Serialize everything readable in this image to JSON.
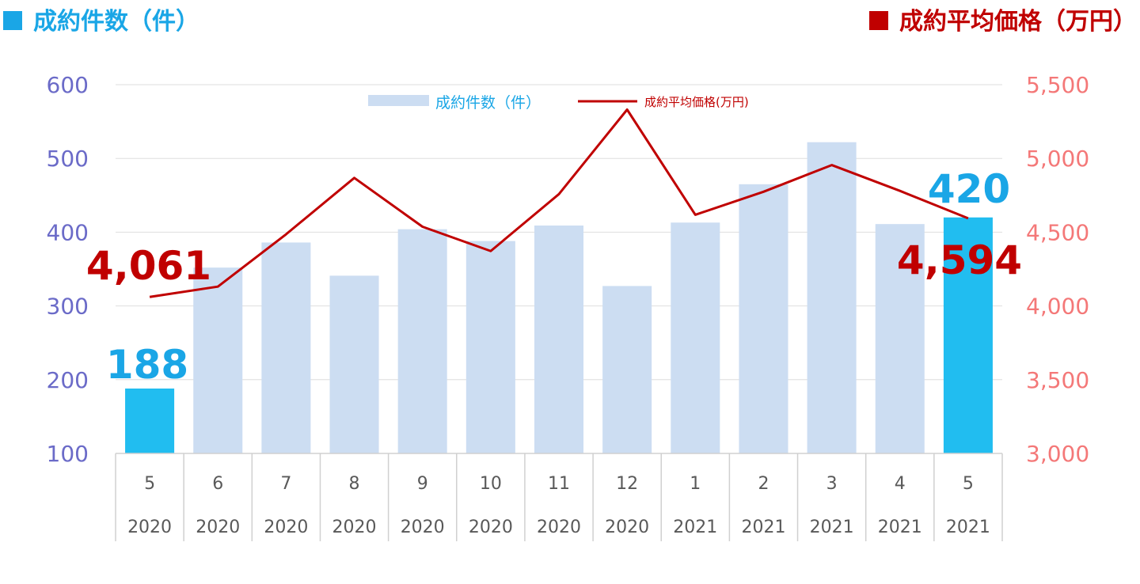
{
  "header": {
    "left_label": "成約件数（件）",
    "right_label": "成約平均価格（万円）",
    "left_color": "#1aa6e6",
    "right_color": "#c00000"
  },
  "chart_data": {
    "type": "bar",
    "categories": [
      [
        "5",
        "2020"
      ],
      [
        "6",
        "2020"
      ],
      [
        "7",
        "2020"
      ],
      [
        "8",
        "2020"
      ],
      [
        "9",
        "2020"
      ],
      [
        "10",
        "2020"
      ],
      [
        "11",
        "2020"
      ],
      [
        "12",
        "2020"
      ],
      [
        "1",
        "2021"
      ],
      [
        "2",
        "2021"
      ],
      [
        "3",
        "2021"
      ],
      [
        "4",
        "2021"
      ],
      [
        "5",
        "2021"
      ]
    ],
    "series": [
      {
        "name": "成約件数（件）",
        "type": "bar",
        "axis": "left",
        "values": [
          188,
          352,
          386,
          341,
          404,
          388,
          409,
          327,
          413,
          465,
          522,
          411,
          420
        ],
        "color": "#ccddf2",
        "highlight_color": "#21bdf0",
        "highlight_indices": [
          0,
          12
        ]
      },
      {
        "name": "成約平均価格(万円)",
        "type": "line",
        "axis": "right",
        "values": [
          4061,
          4131,
          4486,
          4868,
          4537,
          4372,
          4758,
          5331,
          4618,
          4774,
          4955,
          4780,
          4594
        ],
        "color": "#c00000"
      }
    ],
    "y_left": {
      "range": [
        100,
        600
      ],
      "ticks": [
        "100",
        "200",
        "300",
        "400",
        "500",
        "600"
      ],
      "color": "#6b6bc8"
    },
    "y_right": {
      "range": [
        3000,
        5500
      ],
      "ticks": [
        "3,000",
        "3,500",
        "4,000",
        "4,500",
        "5,000",
        "5,500"
      ],
      "color": "#f47878"
    },
    "grid": true,
    "legend": {
      "position": "top-center"
    },
    "annotations": [
      {
        "text": "188",
        "series": 0,
        "index": 0,
        "color": "#1aa6e6"
      },
      {
        "text": "420",
        "series": 0,
        "index": 12,
        "color": "#1aa6e6"
      },
      {
        "text": "4,061",
        "series": 1,
        "index": 0,
        "color": "#c00000"
      },
      {
        "text": "4,594",
        "series": 1,
        "index": 12,
        "color": "#c00000"
      }
    ]
  }
}
